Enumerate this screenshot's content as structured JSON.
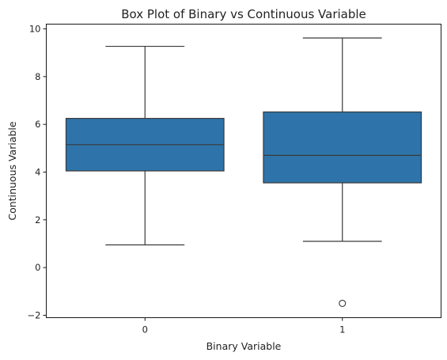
{
  "chart_data": {
    "type": "box",
    "title": "Box Plot of Binary vs Continuous Variable",
    "xlabel": "Binary Variable",
    "ylabel": "Continuous Variable",
    "categories": [
      "0",
      "1"
    ],
    "yticks": [
      -2,
      0,
      2,
      4,
      6,
      8,
      10
    ],
    "ylim": [
      -2.1,
      10.2
    ],
    "grid": false,
    "box_color": "#2e74aa",
    "line_color": "#3a3a3a",
    "boxes": [
      {
        "category": "0",
        "whisker_low": 0.95,
        "q1": 4.05,
        "median": 5.15,
        "q3": 6.25,
        "whisker_high": 9.27,
        "outliers": []
      },
      {
        "category": "1",
        "whisker_low": 1.1,
        "q1": 3.55,
        "median": 4.7,
        "q3": 6.52,
        "whisker_high": 9.62,
        "outliers": [
          -1.5
        ]
      }
    ]
  }
}
